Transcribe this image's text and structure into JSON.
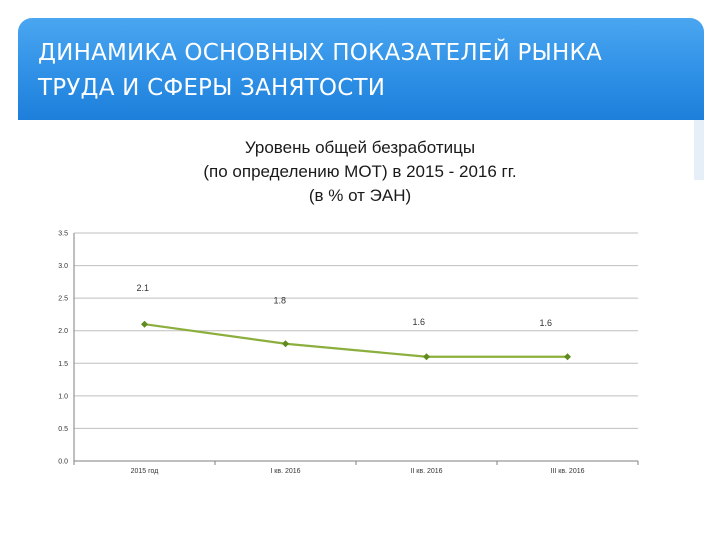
{
  "header": {
    "title_line1": "ДИНАМИКА ОСНОВНЫХ ПОКАЗАТЕЛЕЙ РЫНКА",
    "title_line2": "ТРУДА И СФЕРЫ ЗАНЯТОСТИ"
  },
  "colors": {
    "banner": "#2f90e6",
    "series_line": "#8cae3c",
    "series_marker": "#5f8a1f",
    "grid": "#bfbfbf"
  },
  "chart_data": {
    "type": "line",
    "title_lines": [
      "Уровень общей безработицы",
      "(по определению МОТ)  в 2015 - 2016 гг.",
      "(в % от ЭАН)"
    ],
    "categories": [
      "2015 год",
      "I кв. 2016",
      "II кв. 2016",
      "III кв. 2016"
    ],
    "series": [
      {
        "values": [
          2.1,
          1.8,
          1.6,
          1.6
        ]
      }
    ],
    "data_labels": [
      "2.1",
      "1.8",
      "1.6",
      "1.6"
    ],
    "y_ticks": [
      "0.0",
      "0.5",
      "1.0",
      "1.5",
      "2.0",
      "2.5",
      "3.0",
      "3.5"
    ],
    "ylim": [
      0,
      3.5
    ],
    "grid": true,
    "legend": "none"
  }
}
